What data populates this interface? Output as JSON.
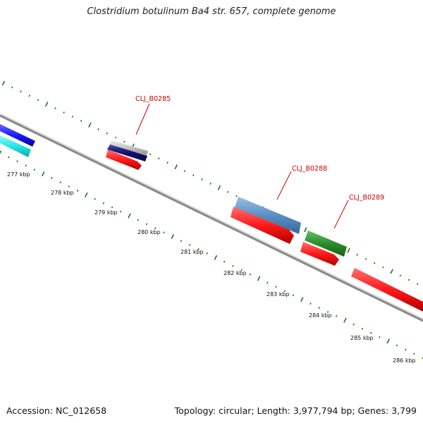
{
  "title": "Clostridium botulinum Ba4 str. 657, complete genome",
  "footer": {
    "accession": "Accession: NC_012658",
    "summary": "Topology: circular; Length: 3,977,794 bp; Genes: 3,799"
  },
  "colors": {
    "backbone": "#8a8a8a",
    "ticks": "#1a7a1a",
    "label": "#cc0000",
    "red": "#ff1a1a",
    "blue": "#1a1aff",
    "cyan": "#22e6e6",
    "navy": "#10106e",
    "silver": "#c4c4c4",
    "steelblue": "#5b8fc4",
    "green": "#2a8f2a"
  },
  "scale_labels": [
    "277 kbp",
    "278 kbp",
    "279 kbp",
    "280 kbp",
    "281 kbp",
    "282 kbp",
    "283 kbp",
    "284 kbp",
    "285 kbp",
    "286 kbp"
  ],
  "gene_labels": [
    "CLJ_B0285",
    "CLJ_B0288",
    "CLJ_B0289"
  ]
}
